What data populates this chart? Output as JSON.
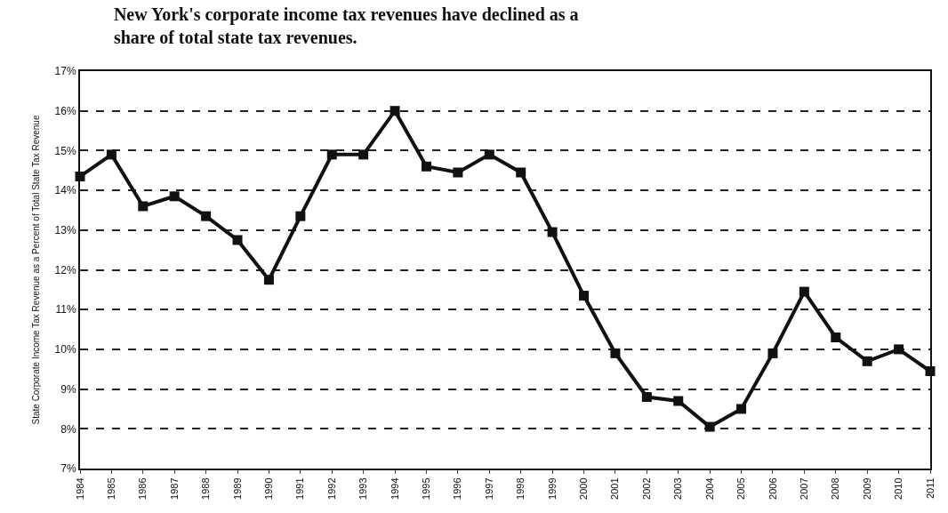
{
  "chart_data": {
    "type": "line",
    "title": "New York's corporate income tax revenues have declined as a share of total state tax revenues.",
    "ylabel": "State Corporate Income Tax Revenue as a Percent of Total State Tax Revenue",
    "categories": [
      "1984",
      "1985",
      "1986",
      "1987",
      "1988",
      "1989",
      "1990",
      "1991",
      "1992",
      "1993",
      "1994",
      "1995",
      "1996",
      "1997",
      "1998",
      "1999",
      "2000",
      "2001",
      "2002",
      "2003",
      "2004",
      "2005",
      "2006",
      "2007",
      "2008",
      "2009",
      "2010",
      "2011"
    ],
    "series": [
      {
        "color": "#111111",
        "values": [
          14.35,
          14.9,
          13.6,
          13.85,
          13.35,
          12.75,
          11.75,
          13.35,
          14.9,
          14.9,
          16.0,
          14.6,
          14.45,
          14.9,
          14.45,
          12.95,
          11.35,
          9.9,
          8.8,
          8.7,
          8.05,
          8.5,
          9.9,
          11.45,
          10.3,
          9.7,
          10.0,
          9.45
        ]
      }
    ],
    "ylim": [
      7,
      17
    ],
    "yticks": [
      {
        "value": 7,
        "label": "7%"
      },
      {
        "value": 8,
        "label": "8%"
      },
      {
        "value": 9,
        "label": "9%"
      },
      {
        "value": 10,
        "label": "10%"
      },
      {
        "value": 11,
        "label": "11%"
      },
      {
        "value": 12,
        "label": "12%"
      },
      {
        "value": 13,
        "label": "13%"
      },
      {
        "value": 14,
        "label": "14%"
      },
      {
        "value": 15,
        "label": "15%"
      },
      {
        "value": 16,
        "label": "16%"
      },
      {
        "value": 17,
        "label": "17%"
      }
    ],
    "grid": "y",
    "marker": "square",
    "line_style": "solid"
  }
}
